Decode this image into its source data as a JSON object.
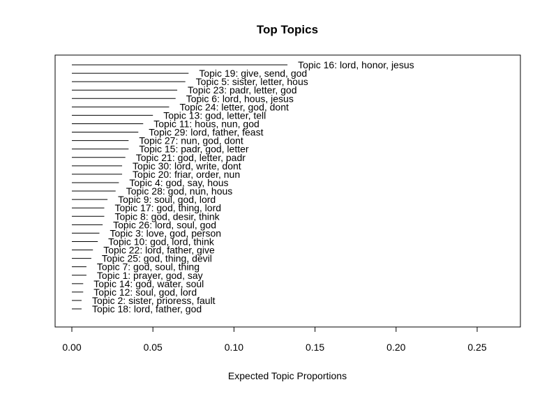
{
  "chart_data": {
    "type": "bar",
    "orientation": "horizontal",
    "title": "Top Topics",
    "xlabel": "Expected Topic Proportions",
    "ylabel": "",
    "xlim": [
      0,
      0.25
    ],
    "x_ticks": [
      "0.00",
      "0.05",
      "0.10",
      "0.15",
      "0.20",
      "0.25"
    ],
    "grid": false,
    "categories": [
      "Topic 16: lord, honor, jesus",
      "Topic 19: give, send, god",
      "Topic 5: sister, letter, hous",
      "Topic 23: padr, letter, god",
      "Topic 6: lord, hous, jesus",
      "Topic 24: letter, god, dont",
      "Topic 13: god, letter, tell",
      "Topic 11: hous, nun, god",
      "Topic 29: lord, father, feast",
      "Topic 27: nun, god, dont",
      "Topic 15: padr, god, letter",
      "Topic 21: god, letter, padr",
      "Topic 30: lord, write, dont",
      "Topic 20: friar, order, nun",
      "Topic 4: god, say, hous",
      "Topic 28: god, nun, hous",
      "Topic 9: soul, god, lord",
      "Topic 17: god, thing, lord",
      "Topic 8: god, desir, think",
      "Topic 26: lord, soul, god",
      "Topic 3: love, god, person",
      "Topic 10: god, lord, think",
      "Topic 22: lord, father, give",
      "Topic 25: god, thing, devil",
      "Topic 7: god, soul, thing",
      "Topic 1: prayer, god, say",
      "Topic 14: god, water, soul",
      "Topic 12: soul, god, lord",
      "Topic 2: sister, prioress, fault",
      "Topic 18: lord, father, god"
    ],
    "values": [
      0.133,
      0.072,
      0.07,
      0.065,
      0.064,
      0.06,
      0.05,
      0.044,
      0.041,
      0.035,
      0.035,
      0.033,
      0.031,
      0.031,
      0.029,
      0.027,
      0.022,
      0.02,
      0.02,
      0.019,
      0.017,
      0.016,
      0.013,
      0.012,
      0.009,
      0.009,
      0.007,
      0.007,
      0.006,
      0.006
    ]
  }
}
